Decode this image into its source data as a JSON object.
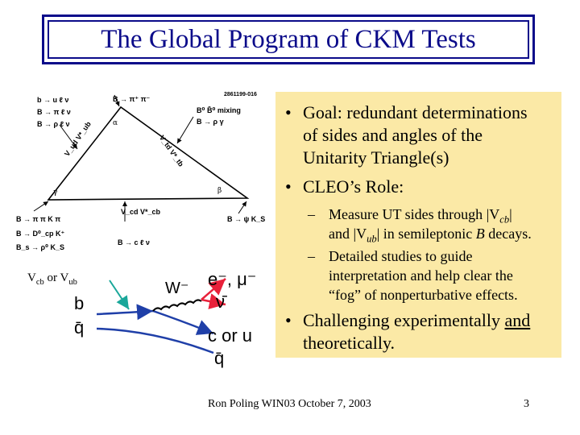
{
  "title": "The Global Program of CKM Tests",
  "bullets": {
    "goal": "Goal: redundant determinations of sides and angles of the Unitarity Triangle(s)",
    "goal_lines": [
      "Goal: redundant determinations",
      "of sides and angles of the",
      "Unitarity Triangle(s)"
    ],
    "role": "CLEO’s Role:",
    "sub1_lines": [
      "Measure UT sides through |V",
      "cb",
      "|",
      "and |V",
      "ub",
      "| in semileptonic ",
      "B",
      " decays."
    ],
    "sub2_lines": [
      "Detailed studies to guide",
      "interpretation and help clear the",
      "“fog” of nonperturbative effects."
    ],
    "challenge_lines": [
      "Challenging experimentally ",
      "and",
      "theoretically."
    ]
  },
  "diagram": {
    "id_label": "2861199-016",
    "top_left": [
      "b → u ℓ ν",
      "B → π ℓ ν",
      "B → ρ ℓ ν"
    ],
    "top_center": "B → π⁺ π⁻",
    "mixing": [
      "B⁰ B̄⁰ mixing",
      "B → ρ γ"
    ],
    "alpha": "α",
    "gamma": "γ",
    "beta": "β",
    "left_side": "V_ud V*_ub",
    "right_side": "V_td V*_tb",
    "bottom_side": "V_cd V*_cb",
    "bottom_left": [
      "B → π π   K π",
      "B → D⁰_cp K⁺",
      "B_s → ρ⁰ K_S"
    ],
    "bottom_center": "B → c ℓ ν",
    "bottom_right": "B → ψ K_S"
  },
  "feynman": {
    "vcb_label": "V",
    "vcb_sub": "cb",
    "or": " or V",
    "vub_sub": "ub",
    "w": "W⁻",
    "lepton": "e⁻, μ⁻",
    "nu": "ν̄",
    "b": "b",
    "qbar": "q̄",
    "corq": "c or u",
    "qbar2": "q̄"
  },
  "footer": "Ron Poling WIN03 October 7, 2003",
  "page": "3",
  "colors": {
    "title": "#0b0b8a",
    "panel": "#fbe9a6",
    "arrow_red": "#e8213a",
    "arrow_teal": "#1aa79a",
    "fermion_blue": "#1f3fa8"
  }
}
